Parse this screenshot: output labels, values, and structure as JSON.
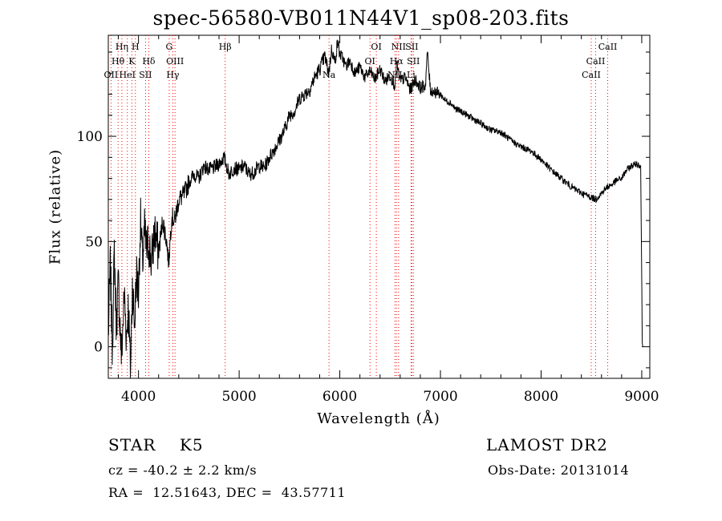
{
  "chart_data": {
    "type": "line",
    "title": "spec-56580-VB011N44V1_sp08-203.fits",
    "xlabel": "Wavelength (Å)",
    "ylabel": "Flux (relative)",
    "xlim": [
      3700,
      9080
    ],
    "ylim": [
      -15,
      148
    ],
    "x_ticks": [
      4000,
      5000,
      6000,
      7000,
      8000,
      9000
    ],
    "y_ticks": [
      0,
      50,
      100
    ],
    "grid": false,
    "legend": "none",
    "line_color": "#000000",
    "marker_color": "#ff0000",
    "spectrum": {
      "x": [
        3700,
        3720,
        3740,
        3760,
        3780,
        3800,
        3830,
        3860,
        3880,
        3900,
        3920,
        3940,
        3960,
        3980,
        4000,
        4020,
        4040,
        4060,
        4080,
        4100,
        4130,
        4160,
        4200,
        4240,
        4280,
        4300,
        4330,
        4360,
        4400,
        4450,
        4500,
        4550,
        4600,
        4650,
        4700,
        4750,
        4800,
        4850,
        4900,
        4950,
        5000,
        5050,
        5100,
        5150,
        5200,
        5250,
        5300,
        5350,
        5400,
        5450,
        5500,
        5550,
        5600,
        5650,
        5700,
        5750,
        5800,
        5850,
        5890,
        5920,
        5950,
        5980,
        6000,
        6030,
        6060,
        6100,
        6150,
        6200,
        6250,
        6300,
        6350,
        6400,
        6450,
        6500,
        6550,
        6563,
        6600,
        6650,
        6700,
        6750,
        6800,
        6850,
        6870,
        6900,
        6950,
        7000,
        7050,
        7100,
        7150,
        7200,
        7300,
        7400,
        7500,
        7600,
        7700,
        7800,
        7900,
        8000,
        8100,
        8200,
        8300,
        8400,
        8450,
        8500,
        8540,
        8600,
        8660,
        8700,
        8750,
        8800,
        8850,
        8900,
        8950,
        8990,
        9000,
        9005,
        9010
      ],
      "y": [
        5,
        40,
        0,
        45,
        10,
        30,
        -5,
        25,
        5,
        20,
        -12,
        30,
        10,
        35,
        25,
        60,
        40,
        55,
        45,
        50,
        40,
        55,
        45,
        60,
        50,
        40,
        62,
        60,
        70,
        72,
        78,
        82,
        80,
        86,
        84,
        85,
        87,
        90,
        82,
        85,
        84,
        86,
        82,
        83,
        86,
        85,
        90,
        94,
        98,
        103,
        110,
        112,
        118,
        120,
        122,
        128,
        132,
        138,
        130,
        142,
        135,
        145,
        139,
        137,
        133,
        136,
        130,
        133,
        128,
        131,
        127,
        132,
        126,
        129,
        124,
        135,
        126,
        128,
        122,
        127,
        123,
        124,
        140,
        122,
        121,
        120,
        117,
        116,
        113,
        112,
        109,
        106,
        103,
        102,
        98,
        95,
        93,
        89,
        84,
        80,
        76,
        73,
        72,
        71,
        70,
        73,
        76,
        77,
        79,
        80,
        84,
        86,
        87,
        86,
        30,
        2,
        0
      ]
    },
    "lines": [
      {
        "label": "Hη",
        "wavelength": 3835,
        "row": 0
      },
      {
        "label": "H",
        "wavelength": 3969,
        "row": 0
      },
      {
        "label": "Hθ",
        "wavelength": 3797,
        "row": 1
      },
      {
        "label": "K",
        "wavelength": 3934,
        "row": 1
      },
      {
        "label": "Hδ",
        "wavelength": 4102,
        "row": 1
      },
      {
        "label": "OII",
        "wavelength": 3727,
        "row": 2
      },
      {
        "label": "HeI",
        "wavelength": 3889,
        "row": 2
      },
      {
        "label": "SII",
        "wavelength": 4070,
        "row": 2
      },
      {
        "label": "G",
        "wavelength": 4305,
        "row": 0
      },
      {
        "label": "OIII",
        "wavelength": 4363,
        "row": 1
      },
      {
        "label": "Hγ",
        "wavelength": 4341,
        "row": 2
      },
      {
        "label": "Hβ",
        "wavelength": 4861,
        "row": 0
      },
      {
        "label": "Na",
        "wavelength": 5893,
        "row": 2
      },
      {
        "label": "OI",
        "wavelength": 6363,
        "row": 0
      },
      {
        "label": "OI",
        "wavelength": 6300,
        "row": 1
      },
      {
        "label": "NII",
        "wavelength": 6584,
        "row": 0
      },
      {
        "label": "SII",
        "wavelength": 6716,
        "row": 0
      },
      {
        "label": "Hα",
        "wavelength": 6563,
        "row": 1
      },
      {
        "label": "SII",
        "wavelength": 6731,
        "row": 1
      },
      {
        "label": "NII",
        "wavelength": 6548,
        "row": 2
      },
      {
        "label": "Li",
        "wavelength": 6708,
        "row": 2
      },
      {
        "label": "CaII",
        "wavelength": 8662,
        "row": 0
      },
      {
        "label": "CaII",
        "wavelength": 8542,
        "row": 1
      },
      {
        "label": "CaII",
        "wavelength": 8498,
        "row": 2
      }
    ]
  },
  "info": {
    "object": "STAR    K5",
    "survey": "LAMOST DR2",
    "cz": "cz = -40.2 ± 2.2 km/s",
    "obs_date": "Obs-Date: 20131014",
    "radec": "RA =  12.51643, DEC =  43.57711"
  }
}
